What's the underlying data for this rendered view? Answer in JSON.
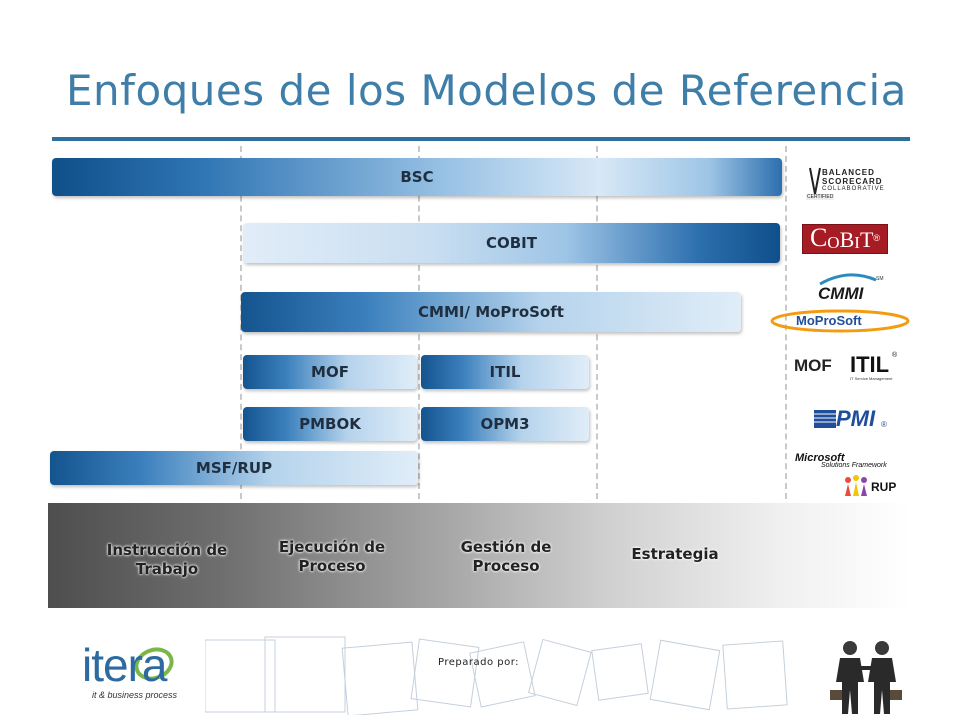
{
  "title": "Enfoques de los Modelos de Referencia",
  "bars": {
    "bsc": "BSC",
    "cobit": "COBIT",
    "cmmi": "CMMI/ MoProSoft",
    "mof": "MOF",
    "itil": "ITIL",
    "pmbok": "PMBOK",
    "opm3": "OPM3",
    "msf": "MSF/RUP"
  },
  "levels": {
    "instruccion": "Instrucción de\nTrabajo",
    "ejecucion": "Ejecución de\nProceso",
    "gestion": "Gestión de\nProceso",
    "estrategia": "Estrategia"
  },
  "logos": {
    "bsc_line1": "BALANCED",
    "bsc_line2": "SCORECARD",
    "bsc_line3": "COLLABORATIVE",
    "bsc_badge": "CERTIFIED",
    "cobit_c": "C",
    "cobit_o": "O",
    "cobit_b": "B",
    "cobit_i": "I",
    "cobit_t": "T",
    "cobit_reg": "®",
    "cmmi": "CMMI",
    "cmmi_sm": "SM",
    "moprosoft": "MoProSoft",
    "mof": "MOF",
    "itil": "ITIL",
    "itil_reg": "®",
    "itil_sub": "IT Service Management",
    "pmi": "PMI",
    "pmi_reg": "®",
    "microsoft": "Microsoft",
    "msf_sub": "Solutions Framework",
    "rup": "RUP"
  },
  "footer": {
    "brand": "itera",
    "tagline": "it & business process",
    "prepared": "Preparado por:"
  },
  "colors": {
    "title": "#3f7ea8",
    "rule": "#2f6f9e",
    "bar_dark": "#0f4f8a",
    "bar_light": "#d7e8f6",
    "itera_green": "#7ab648",
    "itera_blue": "#2c6aa0",
    "moprosoft_orange": "#f39c12"
  }
}
